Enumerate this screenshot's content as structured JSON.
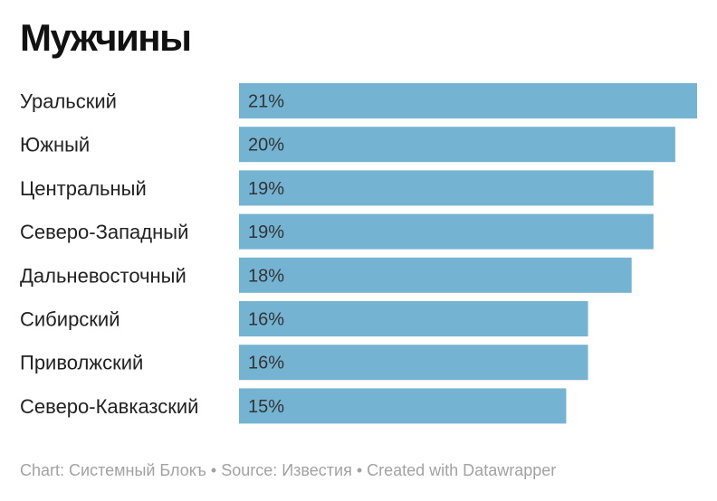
{
  "title": "Мужчины",
  "footer": "Chart: Системный Блокъ • Source: Известия • Created with Datawrapper",
  "bar_color": "#74b4d2",
  "chart_data": {
    "type": "bar",
    "orientation": "horizontal",
    "title": "Мужчины",
    "categories": [
      "Уральский",
      "Южный",
      "Центральный",
      "Северо-Западный",
      "Дальневосточный",
      "Сибирский",
      "Приволжский",
      "Северо-Кавказский"
    ],
    "values": [
      21,
      20,
      19,
      19,
      18,
      16,
      16,
      15
    ],
    "value_labels": [
      "21%",
      "20%",
      "19%",
      "19%",
      "18%",
      "16%",
      "16%",
      "15%"
    ],
    "unit": "%",
    "xlim": [
      0,
      21
    ],
    "grid": false,
    "legend": "none"
  }
}
